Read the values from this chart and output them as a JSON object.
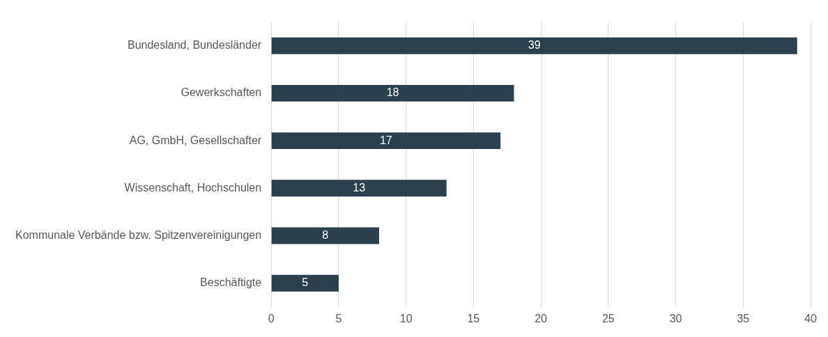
{
  "chart_data": {
    "type": "bar",
    "orientation": "horizontal",
    "categories": [
      "Bundesland, Bundesländer",
      "Gewerkschaften",
      "AG, GmbH, Gesellschafter",
      "Wissenschaft, Hochschulen",
      "Kommunale Verbände bzw. Spitzenvereinigungen",
      "Beschäftigte"
    ],
    "values": [
      39,
      18,
      17,
      13,
      8,
      5
    ],
    "color": "#2b3f4c",
    "xlim": [
      0,
      40
    ],
    "xticks": [
      0,
      5,
      10,
      15,
      20,
      25,
      30,
      35,
      40
    ],
    "grid": "x",
    "data_labels": true,
    "legend": false
  }
}
